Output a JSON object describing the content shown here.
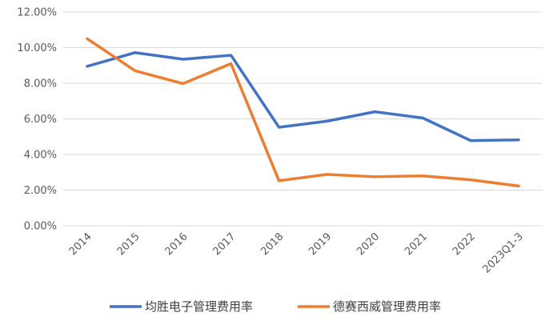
{
  "chart_data": {
    "type": "line",
    "categories": [
      "2014",
      "2015",
      "2016",
      "2017",
      "2018",
      "2019",
      "2020",
      "2021",
      "2022",
      "2023Q1-3"
    ],
    "y_tick_labels": [
      "0.00%",
      "2.00%",
      "4.00%",
      "6.00%",
      "8.00%",
      "10.00%",
      "12.00%"
    ],
    "ylim": [
      0,
      12
    ],
    "y_unit": "%",
    "grid": true,
    "legend_position": "bottom",
    "series": [
      {
        "name": "均胜电子管理费用率",
        "color": "#4472c4",
        "values": [
          8.95,
          9.72,
          9.35,
          9.57,
          5.53,
          5.87,
          6.4,
          6.05,
          4.78,
          4.82
        ]
      },
      {
        "name": "德赛西威管理费用率",
        "color": "#ed7d31",
        "values": [
          10.5,
          8.7,
          7.98,
          9.1,
          2.53,
          2.88,
          2.75,
          2.8,
          2.58,
          2.23
        ]
      }
    ]
  }
}
